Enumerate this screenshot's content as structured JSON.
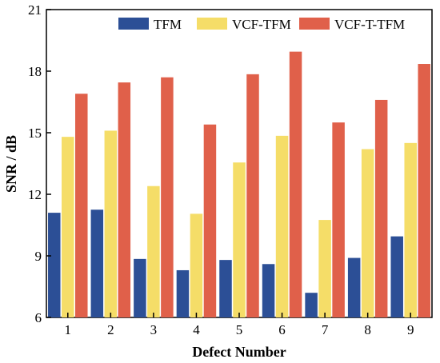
{
  "chart_data": {
    "type": "bar",
    "xlabel": "Defect Number",
    "ylabel": "SNR / dB",
    "categories": [
      "1",
      "2",
      "3",
      "4",
      "5",
      "6",
      "7",
      "8",
      "9"
    ],
    "ylim": [
      6,
      21
    ],
    "yticks": [
      "6",
      "9",
      "12",
      "15",
      "18",
      "21"
    ],
    "legend_position": "top",
    "grid": false,
    "series": [
      {
        "name": "TFM",
        "color": "#2c4f96",
        "values": [
          11.1,
          11.25,
          8.85,
          8.3,
          8.8,
          8.6,
          7.2,
          8.9,
          9.95
        ]
      },
      {
        "name": "VCF-TFM",
        "color": "#f5dd68",
        "values": [
          14.8,
          15.1,
          12.4,
          11.05,
          13.55,
          14.85,
          10.75,
          14.2,
          14.5
        ]
      },
      {
        "name": "VCF-T-TFM",
        "color": "#e0604a",
        "values": [
          16.9,
          17.45,
          17.7,
          15.4,
          17.85,
          18.95,
          15.5,
          16.6,
          18.35
        ]
      }
    ]
  }
}
